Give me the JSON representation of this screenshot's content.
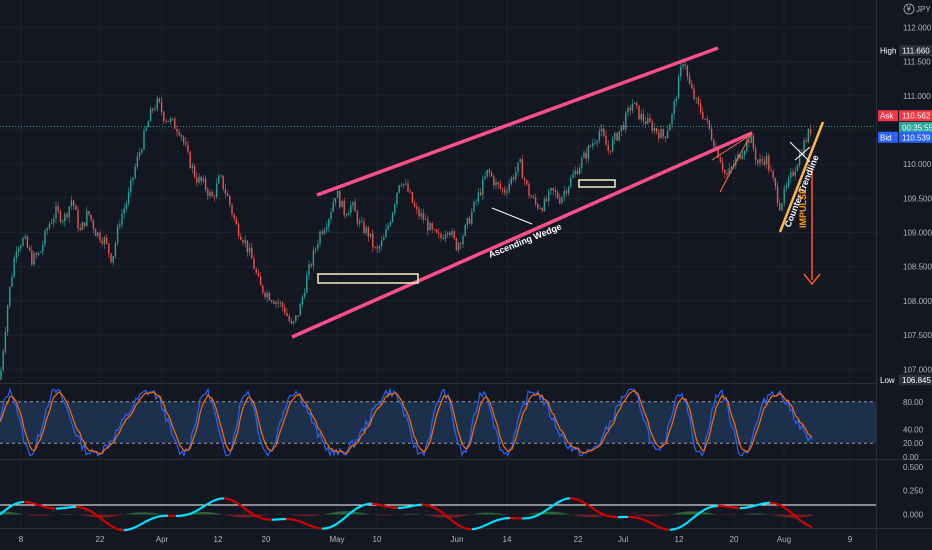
{
  "chart_data": [
    {
      "type": "candlestick",
      "instrument_label": "JPY",
      "currency_badge": "¥",
      "ylim": [
        106.8,
        112.4
      ],
      "y_ticks": [
        "112.000",
        "111.500",
        "111.000",
        "110.500",
        "110.000",
        "109.500",
        "109.000",
        "108.500",
        "108.000",
        "107.500",
        "107.000"
      ],
      "x_ticks": [
        "8",
        "22",
        "Apr",
        "12",
        "20",
        "May",
        "10",
        "Jun",
        "14",
        "22",
        "Jul",
        "12",
        "20",
        "Aug",
        "9"
      ],
      "close_path": [
        {
          "x": 0,
          "y": 106.85
        },
        {
          "x": 8,
          "y": 108.0
        },
        {
          "x": 16,
          "y": 108.8
        },
        {
          "x": 24,
          "y": 108.9
        },
        {
          "x": 32,
          "y": 108.6
        },
        {
          "x": 40,
          "y": 108.7
        },
        {
          "x": 48,
          "y": 109.1
        },
        {
          "x": 56,
          "y": 109.3
        },
        {
          "x": 64,
          "y": 109.2
        },
        {
          "x": 72,
          "y": 109.5
        },
        {
          "x": 80,
          "y": 109.0
        },
        {
          "x": 88,
          "y": 109.3
        },
        {
          "x": 96,
          "y": 109.0
        },
        {
          "x": 104,
          "y": 108.9
        },
        {
          "x": 112,
          "y": 108.6
        },
        {
          "x": 120,
          "y": 109.2
        },
        {
          "x": 128,
          "y": 109.5
        },
        {
          "x": 136,
          "y": 110.0
        },
        {
          "x": 144,
          "y": 110.4
        },
        {
          "x": 152,
          "y": 110.8
        },
        {
          "x": 158,
          "y": 110.9
        },
        {
          "x": 164,
          "y": 110.7
        },
        {
          "x": 172,
          "y": 110.6
        },
        {
          "x": 180,
          "y": 110.5
        },
        {
          "x": 188,
          "y": 110.1
        },
        {
          "x": 196,
          "y": 109.8
        },
        {
          "x": 204,
          "y": 109.7
        },
        {
          "x": 212,
          "y": 109.5
        },
        {
          "x": 220,
          "y": 109.8
        },
        {
          "x": 228,
          "y": 109.5
        },
        {
          "x": 236,
          "y": 109.1
        },
        {
          "x": 244,
          "y": 108.9
        },
        {
          "x": 252,
          "y": 108.6
        },
        {
          "x": 260,
          "y": 108.2
        },
        {
          "x": 268,
          "y": 108.1
        },
        {
          "x": 276,
          "y": 108.0
        },
        {
          "x": 284,
          "y": 107.9
        },
        {
          "x": 292,
          "y": 107.6
        },
        {
          "x": 300,
          "y": 107.9
        },
        {
          "x": 306,
          "y": 108.3
        },
        {
          "x": 312,
          "y": 108.6
        },
        {
          "x": 320,
          "y": 109.0
        },
        {
          "x": 328,
          "y": 109.2
        },
        {
          "x": 336,
          "y": 109.6
        },
        {
          "x": 344,
          "y": 109.3
        },
        {
          "x": 352,
          "y": 109.4
        },
        {
          "x": 360,
          "y": 109.1
        },
        {
          "x": 368,
          "y": 109.0
        },
        {
          "x": 376,
          "y": 108.7
        },
        {
          "x": 384,
          "y": 108.9
        },
        {
          "x": 392,
          "y": 109.3
        },
        {
          "x": 400,
          "y": 109.8
        },
        {
          "x": 408,
          "y": 109.6
        },
        {
          "x": 416,
          "y": 109.3
        },
        {
          "x": 424,
          "y": 109.2
        },
        {
          "x": 432,
          "y": 109.0
        },
        {
          "x": 440,
          "y": 108.9
        },
        {
          "x": 448,
          "y": 109.1
        },
        {
          "x": 456,
          "y": 108.8
        },
        {
          "x": 464,
          "y": 109.0
        },
        {
          "x": 472,
          "y": 109.3
        },
        {
          "x": 480,
          "y": 109.6
        },
        {
          "x": 488,
          "y": 109.9
        },
        {
          "x": 496,
          "y": 109.7
        },
        {
          "x": 504,
          "y": 109.6
        },
        {
          "x": 512,
          "y": 109.8
        },
        {
          "x": 520,
          "y": 110.0
        },
        {
          "x": 528,
          "y": 109.6
        },
        {
          "x": 536,
          "y": 109.4
        },
        {
          "x": 544,
          "y": 109.4
        },
        {
          "x": 552,
          "y": 109.6
        },
        {
          "x": 560,
          "y": 109.5
        },
        {
          "x": 568,
          "y": 109.7
        },
        {
          "x": 576,
          "y": 109.9
        },
        {
          "x": 584,
          "y": 110.1
        },
        {
          "x": 592,
          "y": 110.3
        },
        {
          "x": 600,
          "y": 110.5
        },
        {
          "x": 608,
          "y": 110.2
        },
        {
          "x": 616,
          "y": 110.4
        },
        {
          "x": 624,
          "y": 110.6
        },
        {
          "x": 632,
          "y": 110.9
        },
        {
          "x": 640,
          "y": 110.7
        },
        {
          "x": 648,
          "y": 110.6
        },
        {
          "x": 656,
          "y": 110.5
        },
        {
          "x": 664,
          "y": 110.4
        },
        {
          "x": 672,
          "y": 110.7
        },
        {
          "x": 680,
          "y": 111.3
        },
        {
          "x": 684,
          "y": 111.6
        },
        {
          "x": 688,
          "y": 111.2
        },
        {
          "x": 696,
          "y": 110.9
        },
        {
          "x": 704,
          "y": 110.7
        },
        {
          "x": 712,
          "y": 110.4
        },
        {
          "x": 720,
          "y": 110.1
        },
        {
          "x": 726,
          "y": 109.8
        },
        {
          "x": 734,
          "y": 110.0
        },
        {
          "x": 742,
          "y": 110.2
        },
        {
          "x": 750,
          "y": 110.4
        },
        {
          "x": 758,
          "y": 110.0
        },
        {
          "x": 766,
          "y": 110.1
        },
        {
          "x": 774,
          "y": 109.7
        },
        {
          "x": 780,
          "y": 109.4
        },
        {
          "x": 788,
          "y": 109.7
        },
        {
          "x": 796,
          "y": 110.0
        },
        {
          "x": 804,
          "y": 110.3
        },
        {
          "x": 812,
          "y": 110.55
        }
      ],
      "price_tags": [
        {
          "label": "High",
          "value": "111.660",
          "price": 111.66,
          "color": "#2a2e39"
        },
        {
          "label": "Ask",
          "value": "110.562",
          "price": 110.562,
          "color": "#f23645"
        },
        {
          "label": "",
          "value": "00:35:55",
          "price": 110.55,
          "color": "#26a69a"
        },
        {
          "label": "Bid",
          "value": "110.539",
          "price": 110.539,
          "color": "#2962ff"
        },
        {
          "label": "Low",
          "value": "106.845",
          "price": 106.845,
          "color": "#2a2e39"
        }
      ],
      "current_price_line": 110.55,
      "annotations": {
        "wedge_label": "Ascending Wedge",
        "trendline_label": "Counter Trendline",
        "impulse_label": "IMPULSE"
      },
      "colors": {
        "up": "#26a69a",
        "down": "#ef5350",
        "wedge": "#ff4f8b",
        "counter_trendline": "#ffb74d",
        "impulse_arrow": "#ff5722"
      }
    },
    {
      "type": "line",
      "indicator": "stochastic",
      "ylim": [
        0,
        100
      ],
      "y_ticks": [
        "80.00",
        "40.00",
        "20.00",
        "0.00"
      ],
      "levels": [
        80,
        20
      ],
      "colors": {
        "k": "#2962ff",
        "d": "#ff6d00",
        "band": "#1f3554"
      }
    },
    {
      "type": "line",
      "indicator": "momentum oscillator",
      "ylim": [
        -0.12,
        0.55
      ],
      "y_ticks": [
        "0.500",
        "0.250",
        "0.000"
      ],
      "colors": {
        "up": "#00e5ff",
        "down": "#d50000",
        "hist_up": "#4caf50",
        "hist_down": "#c62828"
      }
    }
  ]
}
